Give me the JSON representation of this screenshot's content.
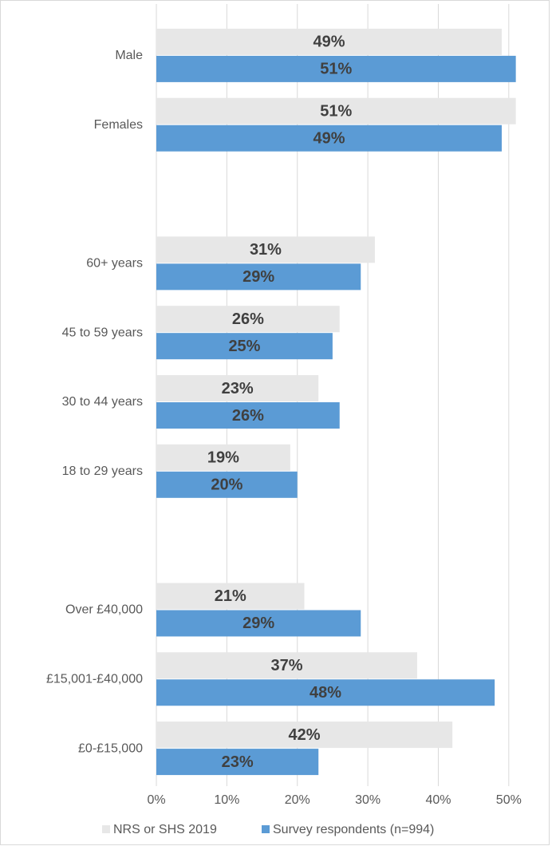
{
  "chart_data": {
    "type": "barh",
    "categories": [
      "Male",
      "Females",
      null,
      "60+ years",
      "45 to 59 years",
      "30 to 44 years",
      "18 to 29 years",
      null,
      "Over £40,000",
      "£15,001-£40,000",
      "£0-£15,000"
    ],
    "series": [
      {
        "name": "NRS or SHS 2019",
        "color": "#e7e7e7",
        "values": [
          49,
          51,
          null,
          31,
          26,
          23,
          19,
          null,
          21,
          37,
          42
        ],
        "value_labels": [
          "49%",
          "51%",
          null,
          "31%",
          "26%",
          "23%",
          "19%",
          null,
          "21%",
          "37%",
          "42%"
        ]
      },
      {
        "name": "Survey respondents (n=994)",
        "color": "#5b9bd5",
        "values": [
          51,
          49,
          null,
          29,
          25,
          26,
          20,
          null,
          29,
          48,
          23
        ],
        "value_labels": [
          "51%",
          "49%",
          null,
          "29%",
          "25%",
          "26%",
          "20%",
          null,
          "29%",
          "48%",
          "23%"
        ]
      }
    ],
    "xlim": [
      0,
      55
    ],
    "xticks": [
      {
        "value": 0,
        "label": "0%"
      },
      {
        "value": 10,
        "label": "10%"
      },
      {
        "value": 20,
        "label": "20%"
      },
      {
        "value": 30,
        "label": "30%"
      },
      {
        "value": 40,
        "label": "40%"
      },
      {
        "value": 50,
        "label": "50%"
      }
    ],
    "grid": true,
    "legend": "bottom"
  }
}
